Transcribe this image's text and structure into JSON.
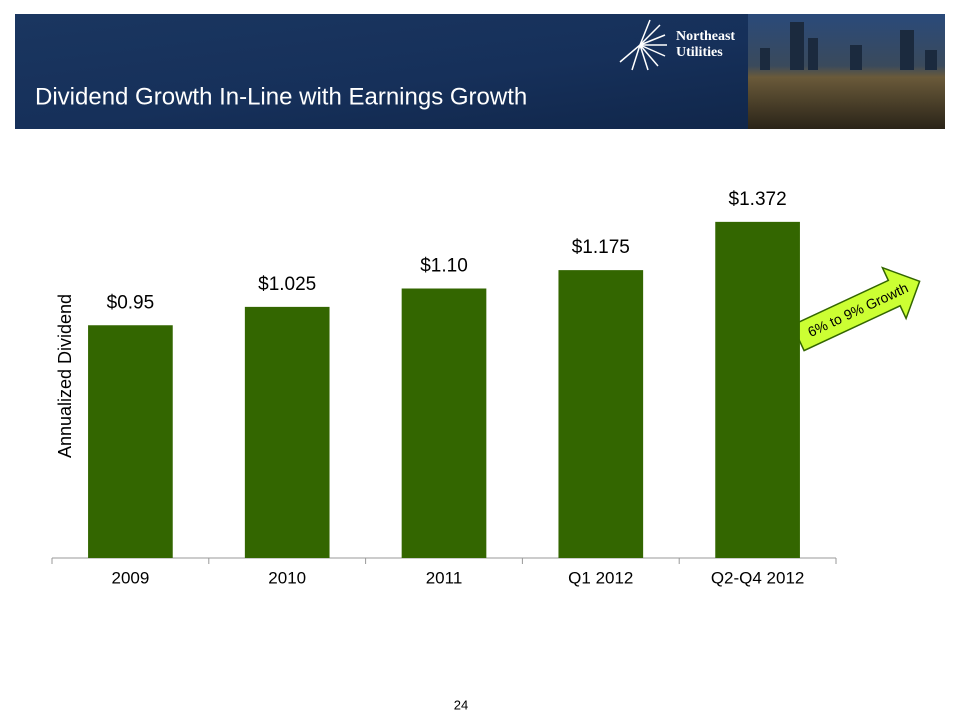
{
  "header": {
    "title": "Dividend Growth In-Line with Earnings Growth",
    "logo_line1": "Northeast",
    "logo_line2": "Utilities"
  },
  "chart_data": {
    "type": "bar",
    "y_label": "Annualized Dividend",
    "categories": [
      "2009",
      "2010",
      "2011",
      "Q1 2012",
      "Q2-Q4 2012"
    ],
    "values": [
      0.95,
      1.025,
      1.1,
      1.175,
      1.372
    ],
    "value_labels": [
      "$0.95",
      "$1.025",
      "$1.10",
      "$1.175",
      "$1.372"
    ],
    "color": "#336600",
    "ylim": [
      0,
      1.4
    ],
    "annotation": "6% to 9% Growth"
  },
  "footer": {
    "page": "24"
  }
}
